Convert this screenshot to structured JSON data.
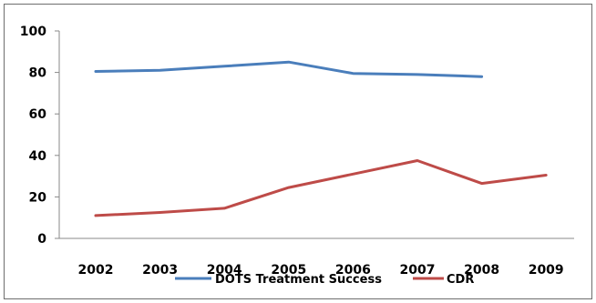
{
  "chart_data": {
    "type": "line",
    "title": "",
    "xlabel": "",
    "ylabel": "",
    "x": [
      "2002",
      "2003",
      "2004",
      "2005",
      "2006",
      "2007",
      "2008",
      "2009"
    ],
    "ylim": [
      0,
      100
    ],
    "yticks": [
      0,
      20,
      40,
      60,
      80,
      100
    ],
    "grid": false,
    "legend_position": "bottom",
    "series": [
      {
        "name": "DOTS Treatment Success",
        "color": "#4a7ebb",
        "values": [
          80.5,
          81,
          83,
          85,
          79.5,
          79,
          78,
          null
        ]
      },
      {
        "name": "CDR",
        "color": "#be4b48",
        "values": [
          11,
          12.5,
          14.5,
          24.5,
          31,
          37.5,
          26.5,
          30.5
        ]
      }
    ]
  }
}
